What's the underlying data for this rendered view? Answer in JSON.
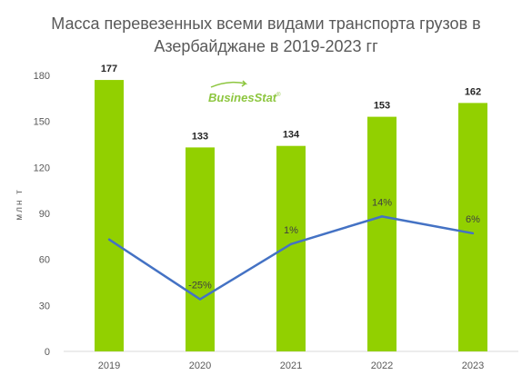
{
  "chart_data": {
    "type": "bar",
    "title_line1": "Масса перевезенных всеми видами транспорта грузов в",
    "title_line2": "Азербайджане в 2019-2023 гг",
    "ylabel": "млн т",
    "ylim": [
      0,
      180
    ],
    "yticks": [
      "0",
      "30",
      "60",
      "90",
      "120",
      "150",
      "180"
    ],
    "categories": [
      "2019",
      "2020",
      "2021",
      "2022",
      "2023"
    ],
    "values": [
      177,
      133,
      134,
      153,
      162
    ],
    "value_labels": [
      "177",
      "133",
      "134",
      "153",
      "162"
    ],
    "bar_color": "#92d000",
    "growth_line": {
      "color": "#4472c4",
      "values": [
        73,
        34,
        70,
        88,
        77
      ],
      "labels": [
        "",
        "-25%",
        "1%",
        "14%",
        "6%"
      ]
    },
    "logo_text_a": "Busines",
    "logo_text_b": "Stat",
    "logo_mark": "®"
  }
}
